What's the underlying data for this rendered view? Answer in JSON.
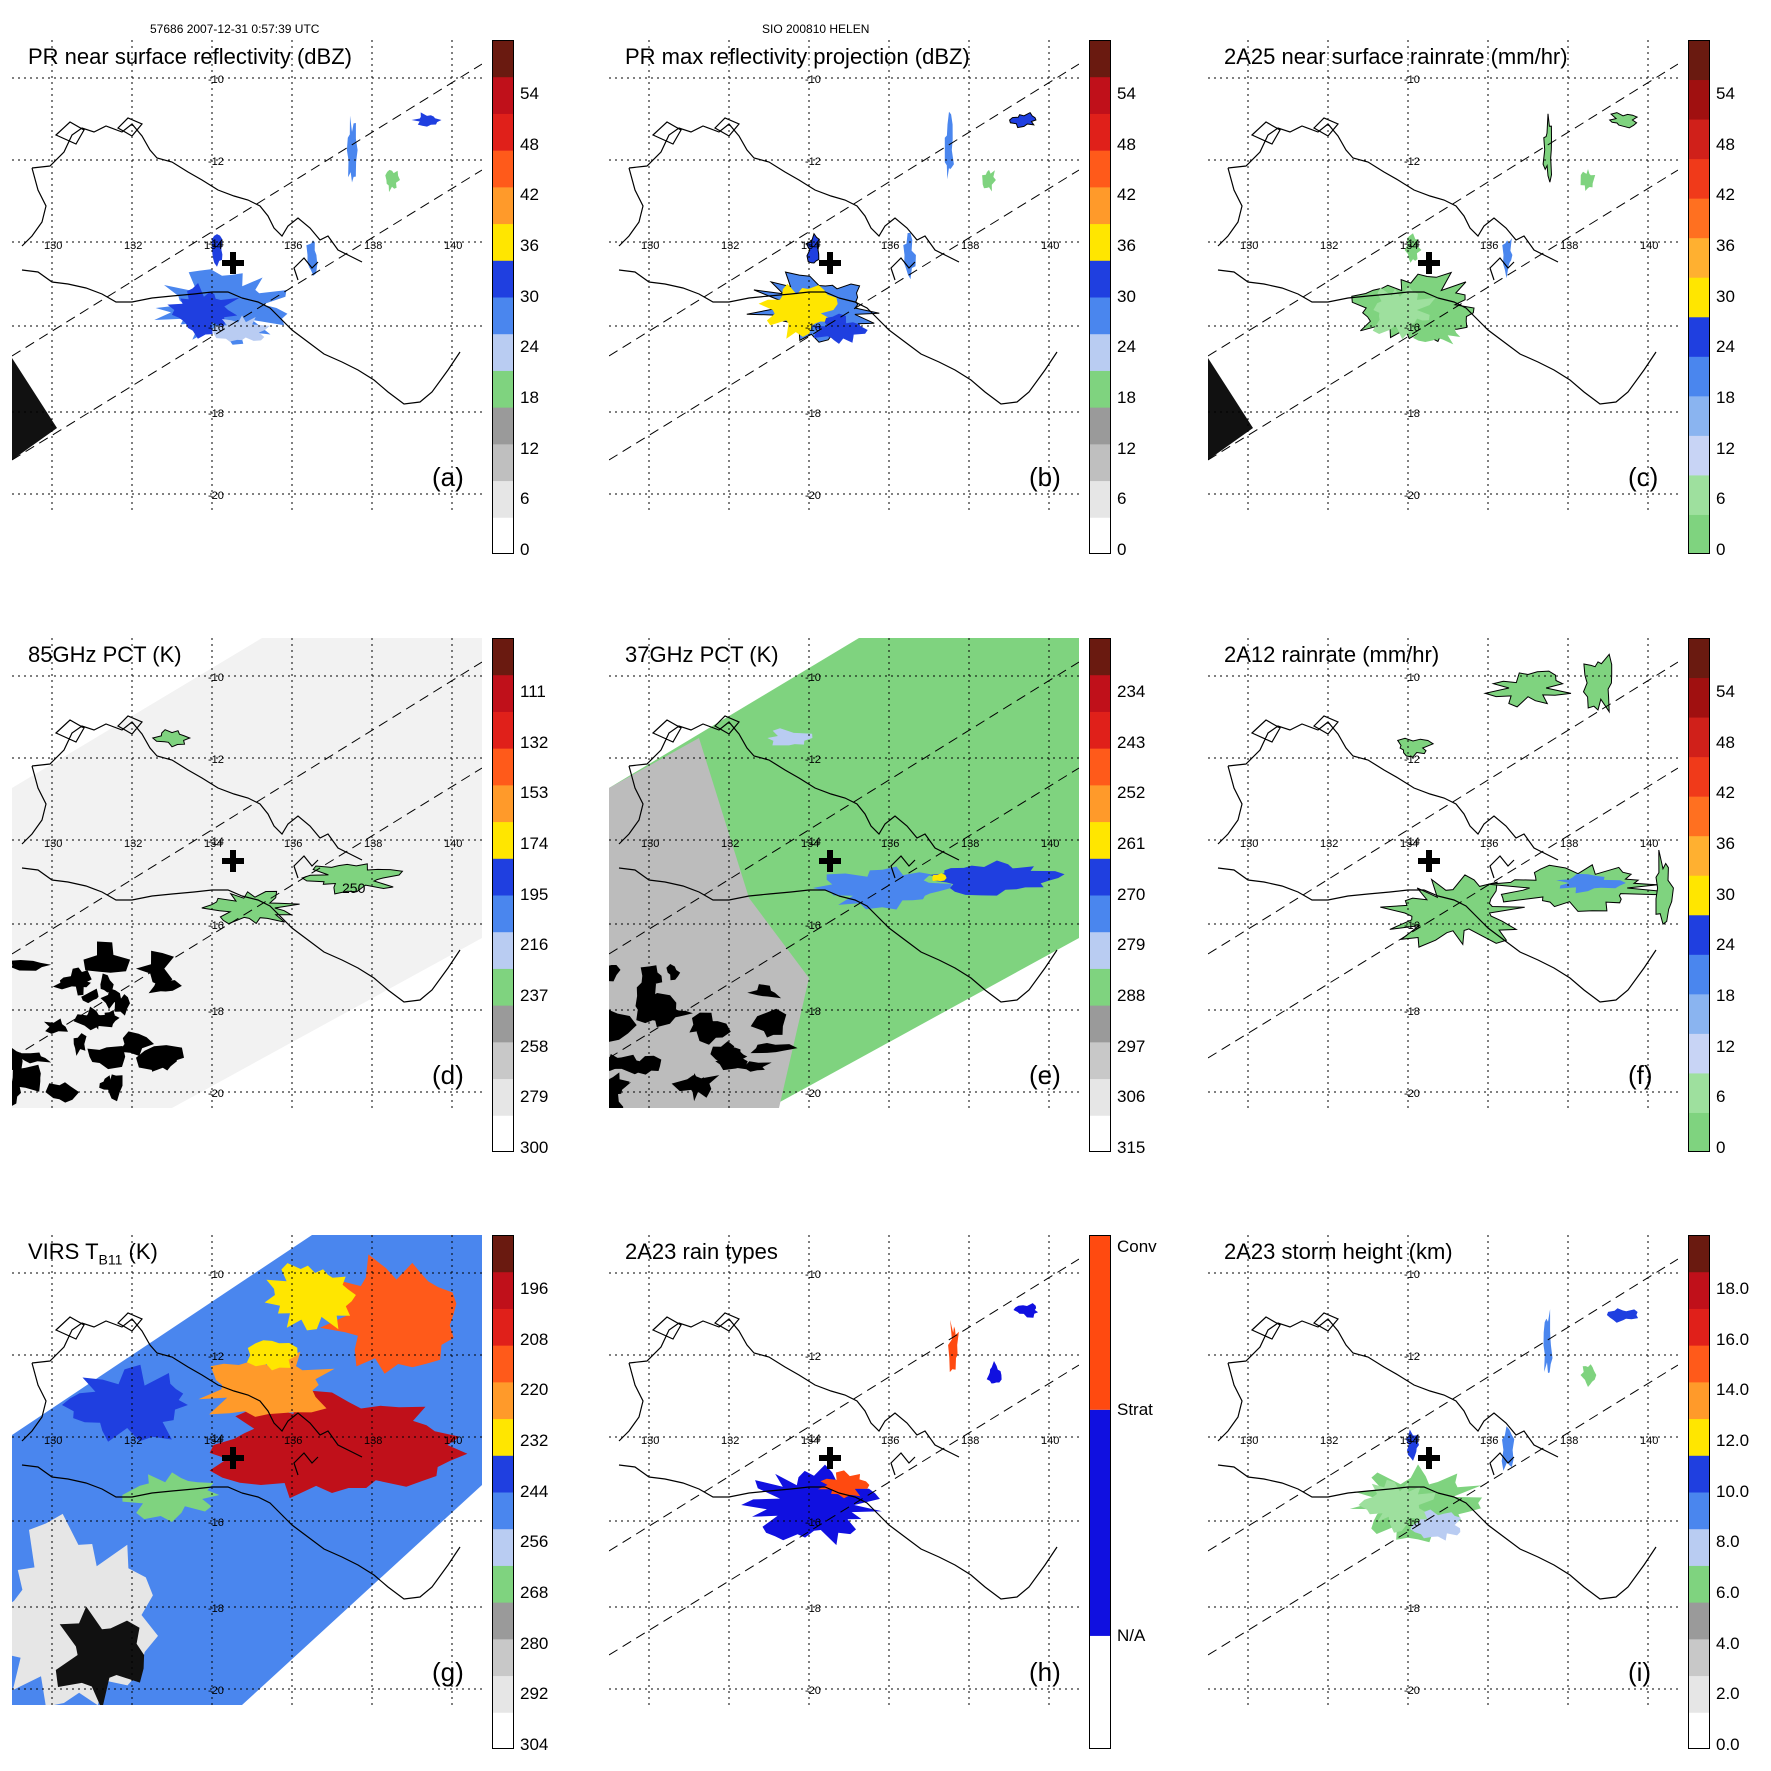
{
  "header": {
    "orbit_time": "57686 2007-12-31 0:57:39 UTC",
    "storm": "SIO 200810 HELEN"
  },
  "map": {
    "lon_labels": [
      "130",
      "132",
      "134",
      "136",
      "138",
      "140"
    ],
    "lat_labels": [
      "-10",
      "-12",
      "-14",
      "-16",
      "-18",
      "-20"
    ],
    "storm_center_marker": "plus-icon"
  },
  "panels": [
    {
      "id": "a",
      "title": "PR near surface reflectivity (dBZ)",
      "letter": "(a)",
      "colorbar_ticks": [
        "0",
        "6",
        "12",
        "18",
        "24",
        "30",
        "36",
        "42",
        "48",
        "54"
      ],
      "colorbar_colors": [
        "#ffffff",
        "#e6e6e6",
        "#bfbfbf",
        "#9a9a9a",
        "#7fd37f",
        "#b9ccf2",
        "#4a86ee",
        "#1f3fe0",
        "#ffe600",
        "#ff9a2a",
        "#ff5a1a",
        "#e0201a",
        "#c0101a",
        "#6a1a10"
      ]
    },
    {
      "id": "b",
      "title": "PR max reflectivity projection (dBZ)",
      "letter": "(b)",
      "colorbar_ticks": [
        "0",
        "6",
        "12",
        "18",
        "24",
        "30",
        "36",
        "42",
        "48",
        "54"
      ],
      "colorbar_colors": [
        "#ffffff",
        "#e6e6e6",
        "#bfbfbf",
        "#9a9a9a",
        "#7fd37f",
        "#b9ccf2",
        "#4a86ee",
        "#1f3fe0",
        "#ffe600",
        "#ff9a2a",
        "#ff5a1a",
        "#e0201a",
        "#c0101a",
        "#6a1a10"
      ]
    },
    {
      "id": "c",
      "title": "2A25 near surface rainrate (mm/hr)",
      "letter": "(c)",
      "colorbar_ticks": [
        "0",
        "6",
        "12",
        "18",
        "24",
        "30",
        "36",
        "42",
        "48",
        "54"
      ],
      "colorbar_colors": [
        "#7fd37f",
        "#9ee09e",
        "#c8d4f5",
        "#8ab4f0",
        "#4a86ee",
        "#1f3fe0",
        "#ffe600",
        "#ffb030",
        "#ff7020",
        "#f03a1a",
        "#d0201a",
        "#a01010",
        "#6a1a10"
      ]
    },
    {
      "id": "d",
      "title": "85GHz PCT (K)",
      "letter": "(d)",
      "contour_label": "250",
      "colorbar_ticks": [
        "300",
        "279",
        "258",
        "237",
        "216",
        "195",
        "174",
        "153",
        "132",
        "111"
      ],
      "colorbar_colors": [
        "#ffffff",
        "#e6e6e6",
        "#c8c8c8",
        "#9a9a9a",
        "#7fd37f",
        "#b9ccf2",
        "#4a86ee",
        "#1f3fe0",
        "#ffe600",
        "#ff9a2a",
        "#ff5a1a",
        "#e0201a",
        "#c0101a",
        "#6a1a10"
      ]
    },
    {
      "id": "e",
      "title": "37GHz PCT (K)",
      "letter": "(e)",
      "colorbar_ticks": [
        "315",
        "306",
        "297",
        "288",
        "279",
        "270",
        "261",
        "252",
        "243",
        "234"
      ],
      "colorbar_colors": [
        "#ffffff",
        "#e6e6e6",
        "#c8c8c8",
        "#9a9a9a",
        "#7fd37f",
        "#b9ccf2",
        "#4a86ee",
        "#1f3fe0",
        "#ffe600",
        "#ff9a2a",
        "#ff5a1a",
        "#e0201a",
        "#c0101a",
        "#6a1a10"
      ]
    },
    {
      "id": "f",
      "title": "2A12 rainrate (mm/hr)",
      "letter": "(f)",
      "colorbar_ticks": [
        "0",
        "6",
        "12",
        "18",
        "24",
        "30",
        "36",
        "42",
        "48",
        "54"
      ],
      "colorbar_colors": [
        "#7fd37f",
        "#9ee09e",
        "#c8d4f5",
        "#8ab4f0",
        "#4a86ee",
        "#1f3fe0",
        "#ffe600",
        "#ffb030",
        "#ff7020",
        "#f03a1a",
        "#d0201a",
        "#a01010",
        "#6a1a10"
      ]
    },
    {
      "id": "g",
      "title_main": "VIRS T",
      "title_sub": "B11",
      "title_tail": " (K)",
      "letter": "(g)",
      "colorbar_ticks": [
        "304",
        "292",
        "280",
        "268",
        "256",
        "244",
        "232",
        "220",
        "208",
        "196"
      ],
      "colorbar_colors": [
        "#ffffff",
        "#e6e6e6",
        "#c8c8c8",
        "#9a9a9a",
        "#7fd37f",
        "#b9ccf2",
        "#4a86ee",
        "#1f3fe0",
        "#ffe600",
        "#ff9a2a",
        "#ff5a1a",
        "#e0201a",
        "#c0101a",
        "#6a1a10"
      ]
    },
    {
      "id": "h",
      "title": "2A23 rain types",
      "letter": "(h)",
      "colorbar_ticks": [
        "N/A",
        "Strat",
        "Conv"
      ],
      "colorbar_colors": [
        "#ffffff",
        "#1010e0",
        "#ff4a10"
      ]
    },
    {
      "id": "i",
      "title": "2A23 storm height (km)",
      "letter": "(i)",
      "colorbar_ticks": [
        "0.0",
        "2.0",
        "4.0",
        "6.0",
        "8.0",
        "10.0",
        "12.0",
        "14.0",
        "16.0",
        "18.0"
      ],
      "colorbar_colors": [
        "#ffffff",
        "#e6e6e6",
        "#c8c8c8",
        "#9a9a9a",
        "#7fd37f",
        "#b9ccf2",
        "#4a86ee",
        "#1f3fe0",
        "#ffe600",
        "#ff9a2a",
        "#ff5a1a",
        "#e0201a",
        "#c0101a",
        "#6a1a10"
      ]
    }
  ]
}
